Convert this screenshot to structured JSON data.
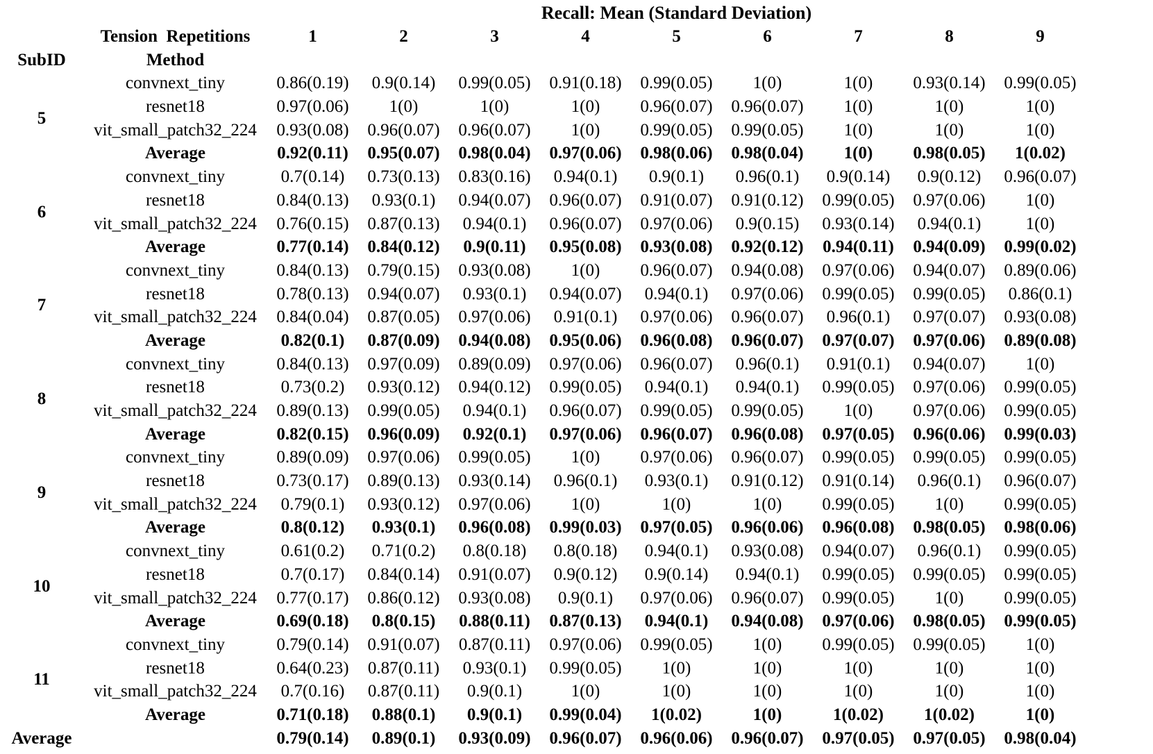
{
  "table": {
    "title": "Recall: Mean (Standard Deviation)",
    "col_group_label": "Tension  Repetitions",
    "index_label": "SubID",
    "method_label": "Method",
    "columns": [
      "1",
      "2",
      "3",
      "4",
      "5",
      "6",
      "7",
      "8",
      "9"
    ],
    "groups": [
      {
        "subid": "5",
        "rows": [
          {
            "method": "convnext_tiny",
            "bold": false,
            "values": [
              "0.86(0.19)",
              "0.9(0.14)",
              "0.99(0.05)",
              "0.91(0.18)",
              "0.99(0.05)",
              "1(0)",
              "1(0)",
              "0.93(0.14)",
              "0.99(0.05)"
            ]
          },
          {
            "method": "resnet18",
            "bold": false,
            "values": [
              "0.97(0.06)",
              "1(0)",
              "1(0)",
              "1(0)",
              "0.96(0.07)",
              "0.96(0.07)",
              "1(0)",
              "1(0)",
              "1(0)"
            ]
          },
          {
            "method": "vit_small_patch32_224",
            "bold": false,
            "values": [
              "0.93(0.08)",
              "0.96(0.07)",
              "0.96(0.07)",
              "1(0)",
              "0.99(0.05)",
              "0.99(0.05)",
              "1(0)",
              "1(0)",
              "1(0)"
            ]
          },
          {
            "method": "Average",
            "bold": true,
            "values": [
              "0.92(0.11)",
              "0.95(0.07)",
              "0.98(0.04)",
              "0.97(0.06)",
              "0.98(0.06)",
              "0.98(0.04)",
              "1(0)",
              "0.98(0.05)",
              "1(0.02)"
            ]
          }
        ]
      },
      {
        "subid": "6",
        "rows": [
          {
            "method": "convnext_tiny",
            "bold": false,
            "values": [
              "0.7(0.14)",
              "0.73(0.13)",
              "0.83(0.16)",
              "0.94(0.1)",
              "0.9(0.1)",
              "0.96(0.1)",
              "0.9(0.14)",
              "0.9(0.12)",
              "0.96(0.07)"
            ]
          },
          {
            "method": "resnet18",
            "bold": false,
            "values": [
              "0.84(0.13)",
              "0.93(0.1)",
              "0.94(0.07)",
              "0.96(0.07)",
              "0.91(0.07)",
              "0.91(0.12)",
              "0.99(0.05)",
              "0.97(0.06)",
              "1(0)"
            ]
          },
          {
            "method": "vit_small_patch32_224",
            "bold": false,
            "values": [
              "0.76(0.15)",
              "0.87(0.13)",
              "0.94(0.1)",
              "0.96(0.07)",
              "0.97(0.06)",
              "0.9(0.15)",
              "0.93(0.14)",
              "0.94(0.1)",
              "1(0)"
            ]
          },
          {
            "method": "Average",
            "bold": true,
            "values": [
              "0.77(0.14)",
              "0.84(0.12)",
              "0.9(0.11)",
              "0.95(0.08)",
              "0.93(0.08)",
              "0.92(0.12)",
              "0.94(0.11)",
              "0.94(0.09)",
              "0.99(0.02)"
            ]
          }
        ]
      },
      {
        "subid": "7",
        "rows": [
          {
            "method": "convnext_tiny",
            "bold": false,
            "values": [
              "0.84(0.13)",
              "0.79(0.15)",
              "0.93(0.08)",
              "1(0)",
              "0.96(0.07)",
              "0.94(0.08)",
              "0.97(0.06)",
              "0.94(0.07)",
              "0.89(0.06)"
            ]
          },
          {
            "method": "resnet18",
            "bold": false,
            "values": [
              "0.78(0.13)",
              "0.94(0.07)",
              "0.93(0.1)",
              "0.94(0.07)",
              "0.94(0.1)",
              "0.97(0.06)",
              "0.99(0.05)",
              "0.99(0.05)",
              "0.86(0.1)"
            ]
          },
          {
            "method": "vit_small_patch32_224",
            "bold": false,
            "values": [
              "0.84(0.04)",
              "0.87(0.05)",
              "0.97(0.06)",
              "0.91(0.1)",
              "0.97(0.06)",
              "0.96(0.07)",
              "0.96(0.1)",
              "0.97(0.07)",
              "0.93(0.08)"
            ]
          },
          {
            "method": "Average",
            "bold": true,
            "values": [
              "0.82(0.1)",
              "0.87(0.09)",
              "0.94(0.08)",
              "0.95(0.06)",
              "0.96(0.08)",
              "0.96(0.07)",
              "0.97(0.07)",
              "0.97(0.06)",
              "0.89(0.08)"
            ]
          }
        ]
      },
      {
        "subid": "8",
        "rows": [
          {
            "method": "convnext_tiny",
            "bold": false,
            "values": [
              "0.84(0.13)",
              "0.97(0.09)",
              "0.89(0.09)",
              "0.97(0.06)",
              "0.96(0.07)",
              "0.96(0.1)",
              "0.91(0.1)",
              "0.94(0.07)",
              "1(0)"
            ]
          },
          {
            "method": "resnet18",
            "bold": false,
            "values": [
              "0.73(0.2)",
              "0.93(0.12)",
              "0.94(0.12)",
              "0.99(0.05)",
              "0.94(0.1)",
              "0.94(0.1)",
              "0.99(0.05)",
              "0.97(0.06)",
              "0.99(0.05)"
            ]
          },
          {
            "method": "vit_small_patch32_224",
            "bold": false,
            "values": [
              "0.89(0.13)",
              "0.99(0.05)",
              "0.94(0.1)",
              "0.96(0.07)",
              "0.99(0.05)",
              "0.99(0.05)",
              "1(0)",
              "0.97(0.06)",
              "0.99(0.05)"
            ]
          },
          {
            "method": "Average",
            "bold": true,
            "values": [
              "0.82(0.15)",
              "0.96(0.09)",
              "0.92(0.1)",
              "0.97(0.06)",
              "0.96(0.07)",
              "0.96(0.08)",
              "0.97(0.05)",
              "0.96(0.06)",
              "0.99(0.03)"
            ]
          }
        ]
      },
      {
        "subid": "9",
        "rows": [
          {
            "method": "convnext_tiny",
            "bold": false,
            "values": [
              "0.89(0.09)",
              "0.97(0.06)",
              "0.99(0.05)",
              "1(0)",
              "0.97(0.06)",
              "0.96(0.07)",
              "0.99(0.05)",
              "0.99(0.05)",
              "0.99(0.05)"
            ]
          },
          {
            "method": "resnet18",
            "bold": false,
            "values": [
              "0.73(0.17)",
              "0.89(0.13)",
              "0.93(0.14)",
              "0.96(0.1)",
              "0.93(0.1)",
              "0.91(0.12)",
              "0.91(0.14)",
              "0.96(0.1)",
              "0.96(0.07)"
            ]
          },
          {
            "method": "vit_small_patch32_224",
            "bold": false,
            "values": [
              "0.79(0.1)",
              "0.93(0.12)",
              "0.97(0.06)",
              "1(0)",
              "1(0)",
              "1(0)",
              "0.99(0.05)",
              "1(0)",
              "0.99(0.05)"
            ]
          },
          {
            "method": "Average",
            "bold": true,
            "values": [
              "0.8(0.12)",
              "0.93(0.1)",
              "0.96(0.08)",
              "0.99(0.03)",
              "0.97(0.05)",
              "0.96(0.06)",
              "0.96(0.08)",
              "0.98(0.05)",
              "0.98(0.06)"
            ]
          }
        ]
      },
      {
        "subid": "10",
        "rows": [
          {
            "method": "convnext_tiny",
            "bold": false,
            "values": [
              "0.61(0.2)",
              "0.71(0.2)",
              "0.8(0.18)",
              "0.8(0.18)",
              "0.94(0.1)",
              "0.93(0.08)",
              "0.94(0.07)",
              "0.96(0.1)",
              "0.99(0.05)"
            ]
          },
          {
            "method": "resnet18",
            "bold": false,
            "values": [
              "0.7(0.17)",
              "0.84(0.14)",
              "0.91(0.07)",
              "0.9(0.12)",
              "0.9(0.14)",
              "0.94(0.1)",
              "0.99(0.05)",
              "0.99(0.05)",
              "0.99(0.05)"
            ]
          },
          {
            "method": "vit_small_patch32_224",
            "bold": false,
            "values": [
              "0.77(0.17)",
              "0.86(0.12)",
              "0.93(0.08)",
              "0.9(0.1)",
              "0.97(0.06)",
              "0.96(0.07)",
              "0.99(0.05)",
              "1(0)",
              "0.99(0.05)"
            ]
          },
          {
            "method": "Average",
            "bold": true,
            "values": [
              "0.69(0.18)",
              "0.8(0.15)",
              "0.88(0.11)",
              "0.87(0.13)",
              "0.94(0.1)",
              "0.94(0.08)",
              "0.97(0.06)",
              "0.98(0.05)",
              "0.99(0.05)"
            ]
          }
        ]
      },
      {
        "subid": "11",
        "rows": [
          {
            "method": "convnext_tiny",
            "bold": false,
            "values": [
              "0.79(0.14)",
              "0.91(0.07)",
              "0.87(0.11)",
              "0.97(0.06)",
              "0.99(0.05)",
              "1(0)",
              "0.99(0.05)",
              "0.99(0.05)",
              "1(0)"
            ]
          },
          {
            "method": "resnet18",
            "bold": false,
            "values": [
              "0.64(0.23)",
              "0.87(0.11)",
              "0.93(0.1)",
              "0.99(0.05)",
              "1(0)",
              "1(0)",
              "1(0)",
              "1(0)",
              "1(0)"
            ]
          },
          {
            "method": "vit_small_patch32_224",
            "bold": false,
            "values": [
              "0.7(0.16)",
              "0.87(0.11)",
              "0.9(0.1)",
              "1(0)",
              "1(0)",
              "1(0)",
              "1(0)",
              "1(0)",
              "1(0)"
            ]
          },
          {
            "method": "Average",
            "bold": true,
            "values": [
              "0.71(0.18)",
              "0.88(0.1)",
              "0.9(0.1)",
              "0.99(0.04)",
              "1(0.02)",
              "1(0)",
              "1(0.02)",
              "1(0.02)",
              "1(0)"
            ]
          }
        ]
      }
    ],
    "footer": {
      "label": "Average",
      "values": [
        "0.79(0.14)",
        "0.89(0.1)",
        "0.93(0.09)",
        "0.96(0.07)",
        "0.96(0.06)",
        "0.96(0.07)",
        "0.97(0.05)",
        "0.97(0.05)",
        "0.98(0.04)"
      ]
    }
  }
}
